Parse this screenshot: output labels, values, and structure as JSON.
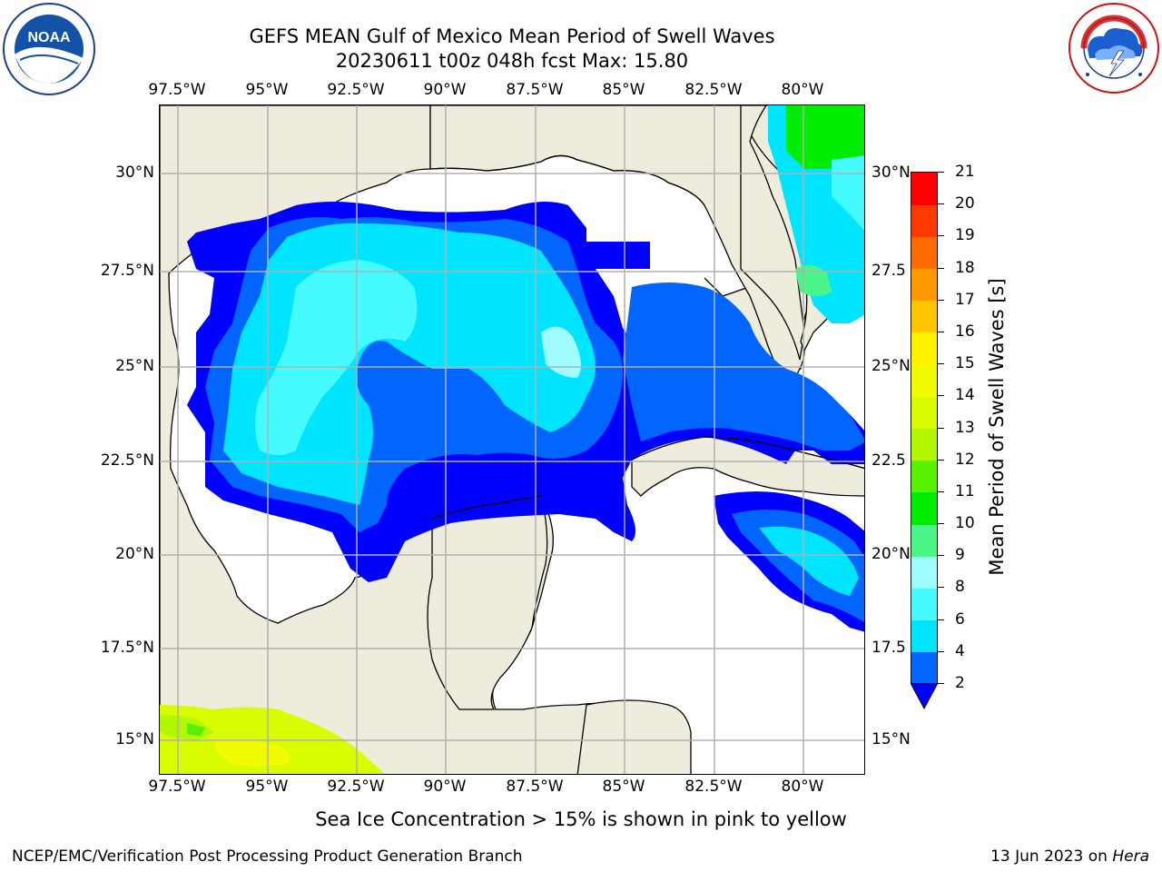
{
  "header": {
    "title": "GEFS MEAN Gulf of Mexico Mean Period of Swell Waves",
    "subtitle": "20230611 t00z 048h fcst   Max: 15.80"
  },
  "logos": {
    "left": {
      "name": "noaa-logo",
      "text": "NOAA",
      "ring_text": "NATIONAL OCEANIC AND ATMOSPHERIC ADMINISTRATION · U.S. DEPARTMENT OF COMMERCE"
    },
    "right": {
      "name": "nws-logo",
      "ring_text": "NATIONAL WEATHER SERVICE"
    }
  },
  "map": {
    "region": "Gulf of Mexico",
    "lon_labels": [
      "97.5°W",
      "95°W",
      "92.5°W",
      "90°W",
      "87.5°W",
      "85°W",
      "82.5°W",
      "80°W"
    ],
    "lat_labels_left": [
      "30°N",
      "27.5°N",
      "25°N",
      "22.5°N",
      "20°N",
      "17.5°N",
      "15°N"
    ],
    "lat_labels_right": [
      "30°N",
      "27.5",
      "25°N",
      "22.5",
      "20°N",
      "17.5",
      "15°N"
    ],
    "extent": {
      "lon": [
        -98,
        -78.3
      ],
      "lat": [
        14,
        31.8
      ]
    },
    "gridlines": true,
    "land_color": "#eeecdc",
    "ocean_nodata_color": "#ffffff"
  },
  "colorbar": {
    "title": "Mean Period of Swell Waves [s]",
    "tick_labels": [
      "2",
      "4",
      "6",
      "8",
      "9",
      "10",
      "11",
      "12",
      "13",
      "14",
      "15",
      "16",
      "17",
      "18",
      "19",
      "20",
      "21"
    ],
    "colors": [
      "#0066ff",
      "#00e5ff",
      "#45fbff",
      "#9ffdff",
      "#4af687",
      "#00ec00",
      "#58f200",
      "#b3f800",
      "#dafc00",
      "#f2fc00",
      "#fff300",
      "#ffc600",
      "#ff9a00",
      "#ff6a00",
      "#ff3a00",
      "#ff0000"
    ],
    "extend_low_color": "#0000ff",
    "extend": "min"
  },
  "footer": {
    "note": "Sea Ice Concentration > 15% is shown in pink to yellow",
    "credit_left": "NCEP/EMC/Verification Post Processing Product Generation Branch",
    "credit_right_prefix": "13 Jun 2023 on ",
    "credit_right_host": "Hera"
  }
}
